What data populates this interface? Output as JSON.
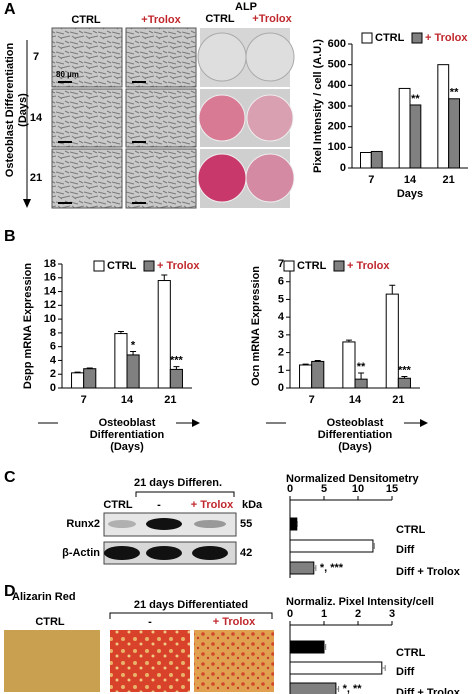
{
  "figure": {
    "panel_labels": [
      "A",
      "B",
      "C",
      "D"
    ],
    "a": {
      "col_headers": [
        "CTRL",
        "+Trolox"
      ],
      "alp_title": "ALP",
      "alp_headers": [
        "CTRL",
        "+Trolox"
      ],
      "row_labels": [
        "7",
        "14",
        "21"
      ],
      "side_label": [
        "Osteoblast Differentiation",
        "(Days)"
      ],
      "scale_bar": "80 µm"
    },
    "c": {
      "group": "21 days Differen.",
      "lanes": [
        "CTRL",
        "-",
        "+ Trolox"
      ],
      "kda": "kDa",
      "proteins": [
        "Runx2",
        "β-Actin"
      ],
      "weights": [
        "55",
        "42"
      ]
    },
    "d": {
      "stain": "Alizarin Red",
      "group": "21 days Differentiated",
      "lanes": [
        "CTRL",
        "-",
        "+ Trolox"
      ]
    }
  },
  "chart_data": [
    {
      "type": "bar",
      "categories": [
        "7",
        "14",
        "21"
      ],
      "series": [
        {
          "name": "CTRL",
          "color": "#ffffff",
          "values": [
            75,
            385,
            500
          ]
        },
        {
          "name": "+ Trolox",
          "color": "#808080",
          "values": [
            80,
            305,
            335
          ],
          "annotations": [
            null,
            "**",
            "**"
          ]
        }
      ],
      "ylim": [
        0,
        600
      ],
      "yticks": [
        0,
        100,
        200,
        300,
        400,
        500,
        600
      ],
      "ylabel": "Pixel Intensity / cell (A.U.)",
      "xlabel": [
        "Days"
      ]
    },
    {
      "type": "bar",
      "categories": [
        "7",
        "14",
        "21"
      ],
      "series": [
        {
          "name": "CTRL",
          "color": "#ffffff",
          "values": [
            2.2,
            7.9,
            15.6
          ],
          "errors": [
            0.1,
            0.3,
            0.8
          ]
        },
        {
          "name": "+ Trolox",
          "color": "#808080",
          "values": [
            2.8,
            4.8,
            2.7
          ],
          "errors": [
            0.1,
            0.5,
            0.4
          ],
          "annotations": [
            null,
            "*",
            "***"
          ]
        }
      ],
      "ylim": [
        0,
        18
      ],
      "yticks": [
        0,
        2,
        4,
        6,
        8,
        10,
        12,
        14,
        16,
        18
      ],
      "ylabel": "Dspp mRNA Expression",
      "xlabel": [
        "Osteoblast",
        "Differentiation",
        "(Days)"
      ]
    },
    {
      "type": "bar",
      "categories": [
        "7",
        "14",
        "21"
      ],
      "series": [
        {
          "name": "CTRL",
          "color": "#ffffff",
          "values": [
            1.3,
            2.6,
            5.3
          ],
          "errors": [
            0.05,
            0.1,
            0.5
          ]
        },
        {
          "name": "+ Trolox",
          "color": "#808080",
          "values": [
            1.5,
            0.5,
            0.55
          ],
          "errors": [
            0.05,
            0.35,
            0.1
          ],
          "annotations": [
            null,
            "**",
            "***"
          ]
        }
      ],
      "ylim": [
        0,
        7
      ],
      "yticks": [
        0,
        1,
        2,
        3,
        4,
        5,
        6,
        7
      ],
      "ylabel": "Ocn mRNA Expression",
      "xlabel": [
        "Osteoblast",
        "Differentiation",
        "(Days)"
      ]
    },
    {
      "type": "barh",
      "title": "Normalized Densitometry",
      "categories": [
        "CTRL",
        "Diff",
        "Diff + Trolox"
      ],
      "values": [
        1,
        12.2,
        3.5
      ],
      "errors": [
        0.1,
        0.2,
        0.3
      ],
      "colors": [
        "#000000",
        "#ffffff",
        "#808080"
      ],
      "annotations": [
        null,
        null,
        "*, ***"
      ],
      "xlim": [
        0,
        15
      ],
      "xticks": [
        0,
        5,
        10,
        15
      ]
    },
    {
      "type": "barh",
      "title": "Normaliz. Pixel Intensity/cell",
      "categories": [
        "CTRL",
        "Diff",
        "Diff + Trolox"
      ],
      "values": [
        1,
        2.7,
        1.35
      ],
      "errors": [
        0.05,
        0.1,
        0.08
      ],
      "colors": [
        "#000000",
        "#ffffff",
        "#808080"
      ],
      "annotations": [
        null,
        null,
        "*, **"
      ],
      "xlim": [
        0,
        3
      ],
      "xticks": [
        0,
        1,
        2,
        3
      ]
    }
  ]
}
